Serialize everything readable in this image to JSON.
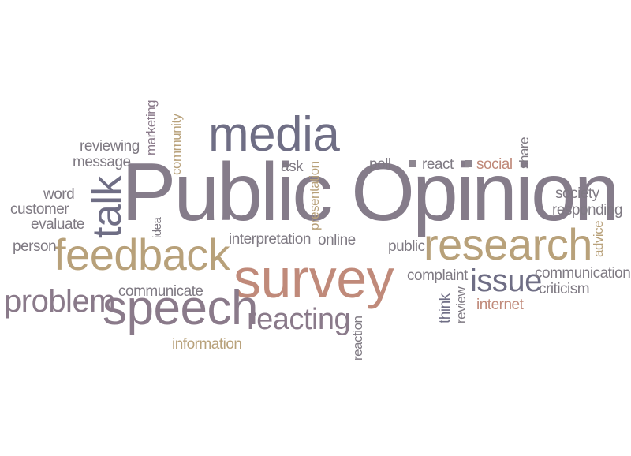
{
  "colors": {
    "slate": "#6f6e85",
    "mauve": "#8a7a8a",
    "tan": "#b8a17a",
    "salmon": "#c08a7a",
    "grey": "#7f7a83"
  },
  "words": {
    "public_opinion": "Public Opinion",
    "media": "media",
    "survey": "survey",
    "feedback": "feedback",
    "speech": "speech",
    "research": "research",
    "problem": "problem",
    "talk": "talk",
    "reacting": "reacting",
    "issue": "issue",
    "reviewing": "reviewing",
    "message": "message",
    "marketing": "marketing",
    "community": "community",
    "word": "word",
    "customer": "customer",
    "evaluate": "evaluate",
    "person": "person",
    "idea": "idea",
    "ask": "ask",
    "presentation": "presentation",
    "interpretation": "interpretation",
    "online": "online",
    "poll": "poll",
    "react": "react",
    "social": "social",
    "share": "share",
    "society": "society",
    "responding": "responding",
    "advice": "advice",
    "public": "public",
    "complaint": "complaint",
    "communication": "communication",
    "criticism": "criticism",
    "think": "think",
    "review": "review",
    "internet": "internet",
    "communicate": "communicate",
    "information": "information",
    "reaction": "reaction"
  }
}
